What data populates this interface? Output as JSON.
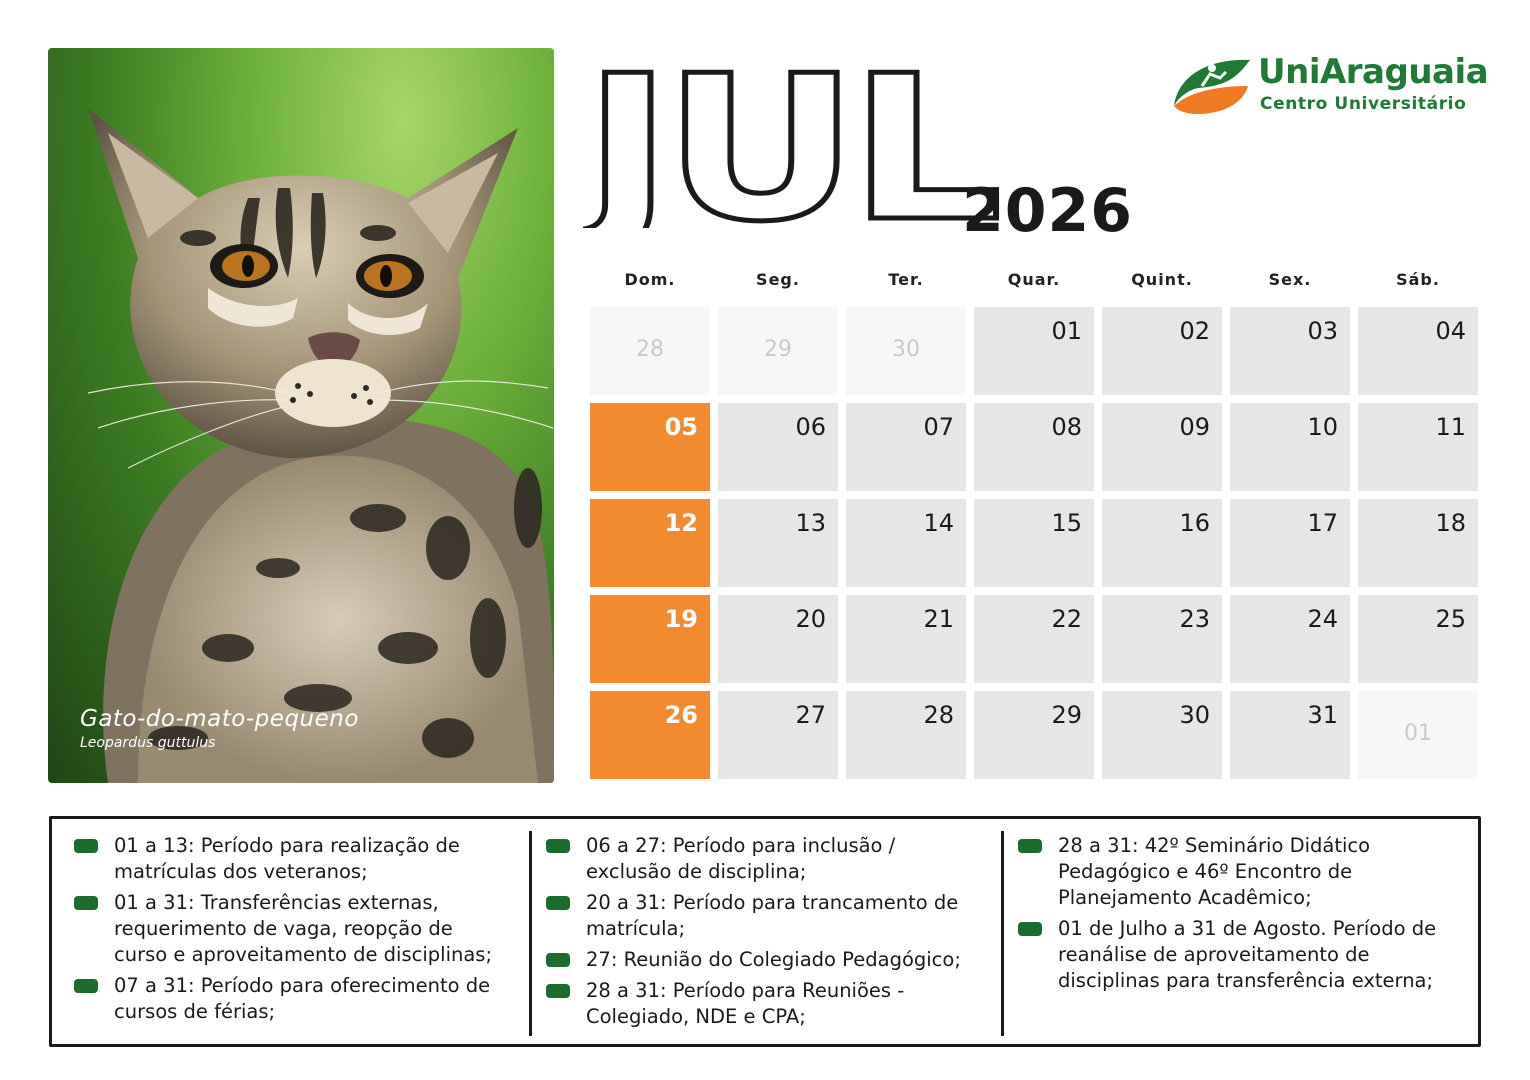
{
  "photo": {
    "common_name": "Gato-do-mato-pequeno",
    "scientific_name": "Leopardus guttulus"
  },
  "header": {
    "month": "JUL",
    "year": "2026"
  },
  "logo": {
    "title": "UniAraguaia",
    "subtitle": "Centro Universitário",
    "colors": {
      "green": "#1e7a34",
      "orange": "#f07a22"
    }
  },
  "weekdays": [
    "Dom.",
    "Seg.",
    "Ter.",
    "Quar.",
    "Quint.",
    "Sex.",
    "Sáb."
  ],
  "weeks": [
    [
      {
        "d": "28",
        "out": true
      },
      {
        "d": "29",
        "out": true
      },
      {
        "d": "30",
        "out": true
      },
      {
        "d": "01"
      },
      {
        "d": "02"
      },
      {
        "d": "03"
      },
      {
        "d": "04"
      }
    ],
    [
      {
        "d": "05"
      },
      {
        "d": "06"
      },
      {
        "d": "07"
      },
      {
        "d": "08"
      },
      {
        "d": "09"
      },
      {
        "d": "10"
      },
      {
        "d": "11"
      }
    ],
    [
      {
        "d": "12"
      },
      {
        "d": "13"
      },
      {
        "d": "14"
      },
      {
        "d": "15"
      },
      {
        "d": "16"
      },
      {
        "d": "17"
      },
      {
        "d": "18"
      }
    ],
    [
      {
        "d": "19"
      },
      {
        "d": "20"
      },
      {
        "d": "21"
      },
      {
        "d": "22"
      },
      {
        "d": "23"
      },
      {
        "d": "24"
      },
      {
        "d": "25"
      }
    ],
    [
      {
        "d": "26"
      },
      {
        "d": "27"
      },
      {
        "d": "28"
      },
      {
        "d": "29"
      },
      {
        "d": "30"
      },
      {
        "d": "31"
      },
      {
        "d": "01",
        "out": true
      }
    ]
  ],
  "colors": {
    "sunday": "#f28b30",
    "cell": "#e6e6e6",
    "bullet": "#1c6b2f"
  },
  "notes": [
    [
      "01 a 13: Período para realização de matrículas dos veteranos;",
      "01 a 31: Transferências externas, requerimento de vaga, reopção de curso e aproveitamento de disciplinas;",
      "07 a 31: Período para oferecimento de cursos de férias;"
    ],
    [
      "06 a 27: Período para inclusão / exclusão de disciplina;",
      "20 a 31: Período para trancamento de matrícula;",
      "27: Reunião do Colegiado Pedagógico;",
      "28 a 31: Período para Reuniões - Colegiado, NDE e CPA;"
    ],
    [
      "28 a 31: 42º Seminário Didático Pedagógico e 46º Encontro de Planejamento Acadêmico;",
      "01 de Julho a 31 de Agosto. Período de reanálise de aproveitamento de disciplinas para transferência externa;"
    ]
  ]
}
